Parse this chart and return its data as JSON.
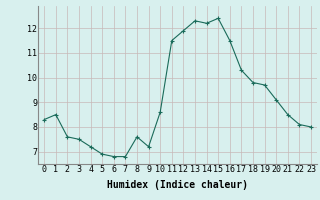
{
  "x": [
    0,
    1,
    2,
    3,
    4,
    5,
    6,
    7,
    8,
    9,
    10,
    11,
    12,
    13,
    14,
    15,
    16,
    17,
    18,
    19,
    20,
    21,
    22,
    23
  ],
  "y": [
    8.3,
    8.5,
    7.6,
    7.5,
    7.2,
    6.9,
    6.8,
    6.8,
    7.6,
    7.2,
    8.6,
    11.5,
    11.9,
    12.3,
    12.2,
    12.4,
    11.5,
    10.3,
    9.8,
    9.7,
    9.1,
    8.5,
    8.1,
    8.0
  ],
  "line_color": "#1a6b5a",
  "marker": "+",
  "marker_size": 3,
  "bg_color": "#d8f0ee",
  "grid_color": "#c8b8b8",
  "xlabel": "Humidex (Indice chaleur)",
  "xlabel_fontsize": 7,
  "tick_fontsize": 6,
  "ylim": [
    6.5,
    12.9
  ],
  "xlim": [
    -0.5,
    23.5
  ],
  "yticks": [
    7,
    8,
    9,
    10,
    11,
    12
  ],
  "xticks": [
    0,
    1,
    2,
    3,
    4,
    5,
    6,
    7,
    8,
    9,
    10,
    11,
    12,
    13,
    14,
    15,
    16,
    17,
    18,
    19,
    20,
    21,
    22,
    23
  ]
}
